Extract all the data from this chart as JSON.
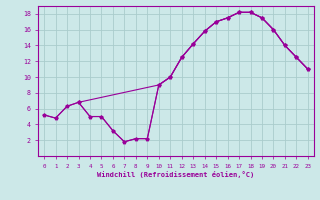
{
  "xlabel": "Windchill (Refroidissement éolien,°C)",
  "background_color": "#cce8e8",
  "grid_color": "#aacccc",
  "line_color": "#990099",
  "xlim": [
    -0.5,
    23.5
  ],
  "ylim": [
    0,
    19
  ],
  "xticks": [
    0,
    1,
    2,
    3,
    4,
    5,
    6,
    7,
    8,
    9,
    10,
    11,
    12,
    13,
    14,
    15,
    16,
    17,
    18,
    19,
    20,
    21,
    22,
    23
  ],
  "yticks": [
    2,
    4,
    6,
    8,
    10,
    12,
    14,
    16,
    18
  ],
  "line1_x": [
    0,
    1,
    2,
    3,
    10,
    11,
    12,
    13,
    14,
    15,
    16,
    17,
    18,
    19,
    20,
    21,
    22,
    23
  ],
  "line1_y": [
    5.2,
    4.8,
    6.3,
    6.8,
    9.0,
    10.0,
    12.5,
    14.2,
    15.8,
    17.0,
    17.5,
    18.2,
    18.2,
    17.5,
    16.0,
    14.0,
    12.5,
    11.0
  ],
  "line2_x": [
    0,
    1,
    2,
    3,
    4,
    5,
    6,
    7,
    8,
    9,
    10,
    11,
    12,
    13,
    14,
    15,
    16,
    17,
    18,
    19,
    20,
    21,
    22,
    23
  ],
  "line2_y": [
    5.2,
    4.8,
    6.3,
    6.8,
    5.0,
    5.0,
    3.2,
    1.8,
    2.2,
    2.2,
    9.0,
    10.0,
    12.5,
    14.2,
    15.8,
    17.0,
    17.5,
    18.2,
    18.2,
    17.5,
    16.0,
    14.0,
    12.5,
    11.0
  ],
  "line3_x": [
    3,
    4,
    5,
    6,
    7,
    8,
    9,
    10,
    11,
    12,
    13,
    14,
    15,
    16,
    17,
    18,
    19,
    20,
    21,
    22,
    23
  ],
  "line3_y": [
    6.8,
    5.0,
    5.0,
    3.2,
    1.8,
    2.2,
    2.2,
    9.0,
    10.0,
    12.5,
    14.2,
    15.8,
    17.0,
    17.5,
    18.2,
    18.2,
    17.5,
    16.0,
    14.0,
    12.5,
    11.0
  ]
}
